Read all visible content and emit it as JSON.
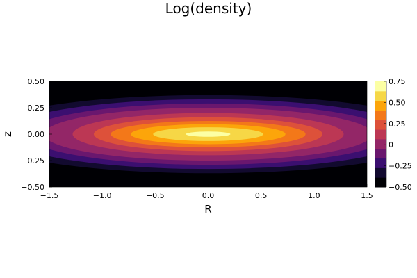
{
  "chart_data": {
    "type": "heatmap",
    "subtype": "filled-contour",
    "title": "Log(density)",
    "xlabel": "R",
    "ylabel": "z",
    "xlim": [
      -1.5,
      1.5
    ],
    "ylim": [
      -0.5,
      0.5
    ],
    "x_ticks": [
      "−1.5",
      "−1.0",
      "−0.5",
      "0.0",
      "0.5",
      "1.0",
      "1.5"
    ],
    "y_ticks": [
      "−0.50",
      "−0.25",
      "0.00",
      "0.25",
      "0.50"
    ],
    "colorbar": {
      "colormap": "inferno",
      "range": [
        -0.5,
        0.75
      ],
      "tick_values": [
        -0.5,
        -0.25,
        0,
        0.25,
        0.5,
        0.75
      ],
      "tick_labels": [
        "−0.50",
        "−0.25",
        "0",
        "0.25",
        "0.50",
        "0.75"
      ],
      "levels": [
        -0.5,
        -0.375,
        -0.25,
        -0.125,
        0,
        0.125,
        0.25,
        0.375,
        0.5,
        0.625,
        0.75
      ],
      "colors": [
        "#000004",
        "#120a2f",
        "#3b0f70",
        "#6a176e",
        "#932667",
        "#bc3754",
        "#dd513a",
        "#f37819",
        "#fca50a",
        "#f6d746",
        "#fcffa4"
      ]
    },
    "contours": [
      {
        "level": -0.375,
        "half_width_R": 2.2,
        "half_height_z": 0.37,
        "color": "#120a2f"
      },
      {
        "level": -0.25,
        "half_width_R": 1.95,
        "half_height_z": 0.33,
        "color": "#3b0f70"
      },
      {
        "level": -0.125,
        "half_width_R": 1.72,
        "half_height_z": 0.29,
        "color": "#6a176e"
      },
      {
        "level": 0.0,
        "half_width_R": 1.55,
        "half_height_z": 0.25,
        "color": "#932667"
      },
      {
        "level": 0.125,
        "half_width_R": 1.28,
        "half_height_z": 0.2,
        "color": "#bc3754"
      },
      {
        "level": 0.25,
        "half_width_R": 1.08,
        "half_height_z": 0.16,
        "color": "#dd513a"
      },
      {
        "level": 0.375,
        "half_width_R": 0.92,
        "half_height_z": 0.125,
        "color": "#f37819"
      },
      {
        "level": 0.5,
        "half_width_R": 0.73,
        "half_height_z": 0.095,
        "color": "#fca50a"
      },
      {
        "level": 0.625,
        "half_width_R": 0.52,
        "half_height_z": 0.065,
        "color": "#f6d746"
      },
      {
        "level": 0.75,
        "half_width_R": 0.21,
        "half_height_z": 0.025,
        "color": "#fcffa4"
      }
    ],
    "background_color": "#000004"
  }
}
